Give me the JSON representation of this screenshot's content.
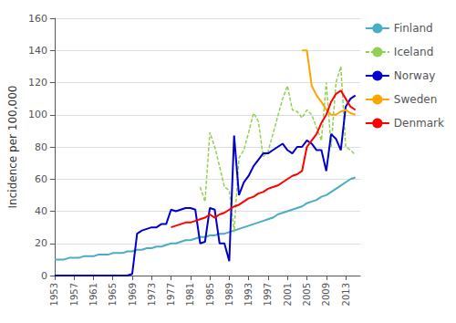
{
  "chart_data": {
    "type": "line",
    "ylabel": "Incidence per 100,000",
    "xlim": [
      1953,
      2016
    ],
    "xticks": [
      1953,
      1957,
      1961,
      1965,
      1969,
      1973,
      1977,
      1981,
      1985,
      1989,
      1993,
      1997,
      2001,
      2005,
      2009,
      2013
    ],
    "ylim": [
      0,
      160
    ],
    "yticks": [
      0,
      20,
      40,
      60,
      80,
      100,
      120,
      140,
      160
    ],
    "grid": true,
    "legend": "right",
    "series": [
      {
        "name": "Finland",
        "color": "#4BACC6",
        "line_style": "solid",
        "x": [
          1953,
          1954,
          1955,
          1956,
          1957,
          1958,
          1959,
          1960,
          1961,
          1962,
          1963,
          1964,
          1965,
          1966,
          1967,
          1968,
          1969,
          1970,
          1971,
          1972,
          1973,
          1974,
          1975,
          1976,
          1977,
          1978,
          1979,
          1980,
          1981,
          1982,
          1983,
          1984,
          1985,
          1986,
          1987,
          1988,
          1989,
          1990,
          1991,
          1992,
          1993,
          1994,
          1995,
          1996,
          1997,
          1998,
          1999,
          2000,
          2001,
          2002,
          2003,
          2004,
          2005,
          2006,
          2007,
          2008,
          2009,
          2010,
          2011,
          2012,
          2013,
          2014,
          2015
        ],
        "values": [
          10,
          10,
          10,
          11,
          11,
          11,
          12,
          12,
          12,
          13,
          13,
          13,
          14,
          14,
          14,
          15,
          15,
          16,
          16,
          17,
          17,
          18,
          18,
          19,
          20,
          20,
          21,
          22,
          22,
          23,
          24,
          24,
          25,
          25,
          26,
          26,
          27,
          28,
          29,
          30,
          31,
          32,
          33,
          34,
          35,
          36,
          38,
          39,
          40,
          41,
          42,
          43,
          45,
          46,
          47,
          49,
          50,
          52,
          54,
          56,
          58,
          60,
          61
        ]
      },
      {
        "name": "Iceland",
        "color": "#92D050",
        "line_style": "dashed",
        "x": [
          1983,
          1984,
          1985,
          1986,
          1987,
          1988,
          1989,
          1990,
          1991,
          1992,
          1993,
          1994,
          1995,
          1996,
          1997,
          1998,
          1999,
          2000,
          2001,
          2002,
          2003,
          2004,
          2005,
          2006,
          2007,
          2008,
          2009,
          2010,
          2011,
          2012,
          2013,
          2014,
          2015
        ],
        "values": [
          55,
          46,
          89,
          80,
          68,
          55,
          53,
          27,
          73,
          78,
          89,
          101,
          96,
          74,
          77,
          88,
          99,
          110,
          118,
          103,
          102,
          98,
          103,
          100,
          92,
          84,
          120,
          80,
          120,
          130,
          80,
          78,
          75
        ]
      },
      {
        "name": "Norway",
        "color": "#0000CD",
        "line_style": "solid",
        "x": [
          1953,
          1954,
          1955,
          1956,
          1957,
          1958,
          1959,
          1960,
          1961,
          1962,
          1963,
          1964,
          1965,
          1966,
          1967,
          1968,
          1969,
          1970,
          1971,
          1972,
          1973,
          1974,
          1975,
          1976,
          1977,
          1978,
          1979,
          1980,
          1981,
          1982,
          1983,
          1984,
          1985,
          1986,
          1987,
          1988,
          1989,
          1990,
          1991,
          1992,
          1993,
          1994,
          1995,
          1996,
          1997,
          1998,
          1999,
          2000,
          2001,
          2002,
          2003,
          2004,
          2005,
          2006,
          2007,
          2008,
          2009,
          2010,
          2011,
          2012,
          2013,
          2014,
          2015
        ],
        "values": [
          0,
          0,
          0,
          0,
          0,
          0,
          0,
          0,
          0,
          0,
          0,
          0,
          0,
          0,
          0,
          0,
          1,
          26,
          28,
          29,
          30,
          30,
          32,
          32,
          41,
          40,
          41,
          42,
          42,
          41,
          20,
          21,
          42,
          41,
          20,
          20,
          9,
          87,
          50,
          58,
          62,
          68,
          72,
          76,
          76,
          78,
          80,
          82,
          78,
          76,
          80,
          80,
          84,
          82,
          78,
          78,
          65,
          88,
          85,
          78,
          105,
          110,
          112
        ]
      },
      {
        "name": "Sweden",
        "color": "#FFA500",
        "line_style": "solid",
        "x": [
          2004,
          2005,
          2006,
          2007,
          2008,
          2009,
          2010,
          2011,
          2012,
          2013,
          2014,
          2015
        ],
        "values": [
          140,
          140,
          118,
          112,
          108,
          103,
          100,
          100,
          102,
          103,
          101,
          100
        ]
      },
      {
        "name": "Denmark",
        "color": "#FF0000",
        "line_style": "solid",
        "x": [
          1977,
          1978,
          1979,
          1980,
          1981,
          1982,
          1983,
          1984,
          1985,
          1986,
          1987,
          1988,
          1989,
          1990,
          1991,
          1992,
          1993,
          1994,
          1995,
          1996,
          1997,
          1998,
          1999,
          2000,
          2001,
          2002,
          2003,
          2004,
          2005,
          2006,
          2007,
          2008,
          2009,
          2010,
          2011,
          2012,
          2013,
          2014,
          2015
        ],
        "values": [
          30,
          31,
          32,
          33,
          33,
          34,
          35,
          36,
          38,
          36,
          38,
          39,
          41,
          43,
          44,
          46,
          48,
          49,
          51,
          52,
          54,
          55,
          56,
          58,
          60,
          62,
          63,
          65,
          80,
          84,
          88,
          95,
          100,
          108,
          113,
          115,
          110,
          105,
          103
        ]
      }
    ]
  }
}
